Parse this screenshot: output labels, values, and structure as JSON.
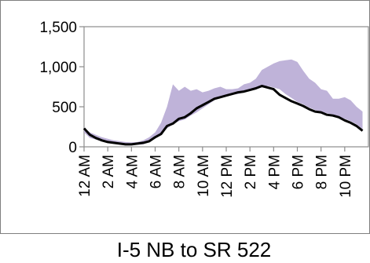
{
  "chart_data": {
    "type": "area",
    "title": "I-5 NB to SR 522",
    "xlabel": "",
    "ylabel": "",
    "ylim": [
      0,
      1500
    ],
    "y_ticks": [
      0,
      500,
      1000,
      1500
    ],
    "y_tick_labels": [
      "0",
      "500",
      "1,000",
      "1,500"
    ],
    "x_tick_labels": [
      "12 AM",
      "2 AM",
      "4 AM",
      "6 AM",
      "8 AM",
      "10 AM",
      "12 PM",
      "2 PM",
      "4 PM",
      "6 PM",
      "8 PM",
      "10 PM"
    ],
    "grid": false,
    "legend": "none",
    "x_hours": [
      0,
      0.5,
      1,
      1.5,
      2,
      2.5,
      3,
      3.5,
      4,
      4.5,
      5,
      5.5,
      6,
      6.5,
      7,
      7.5,
      8,
      8.5,
      9,
      9.5,
      10,
      10.5,
      11,
      11.5,
      12,
      12.5,
      13,
      13.5,
      14,
      14.5,
      15,
      15.5,
      16,
      16.5,
      17,
      17.5,
      18,
      18.5,
      19,
      19.5,
      20,
      20.5,
      21,
      21.5,
      22,
      22.5,
      23,
      23.5
    ],
    "series": [
      {
        "kind": "band",
        "color": "#bfb3d9",
        "lower": [
          180,
          110,
          90,
          70,
          50,
          40,
          30,
          25,
          20,
          25,
          30,
          60,
          100,
          160,
          230,
          280,
          320,
          340,
          390,
          430,
          480,
          530,
          580,
          610,
          640,
          650,
          660,
          680,
          700,
          720,
          740,
          760,
          740,
          720,
          660,
          610,
          560,
          530,
          490,
          460,
          440,
          420,
          400,
          370,
          350,
          320,
          280,
          220
        ],
        "upper": [
          240,
          180,
          150,
          120,
          100,
          80,
          70,
          60,
          55,
          60,
          80,
          120,
          180,
          300,
          500,
          780,
          700,
          750,
          700,
          720,
          680,
          700,
          730,
          750,
          720,
          720,
          730,
          780,
          800,
          850,
          960,
          1000,
          1040,
          1070,
          1080,
          1090,
          1060,
          950,
          850,
          800,
          720,
          700,
          600,
          600,
          620,
          580,
          500,
          440
        ]
      },
      {
        "kind": "line",
        "color": "#000000",
        "values": [
          230,
          150,
          110,
          80,
          60,
          50,
          40,
          30,
          30,
          40,
          50,
          70,
          120,
          160,
          260,
          290,
          350,
          370,
          420,
          480,
          520,
          560,
          600,
          620,
          640,
          660,
          680,
          690,
          710,
          730,
          760,
          740,
          720,
          650,
          610,
          570,
          540,
          510,
          470,
          440,
          430,
          400,
          390,
          370,
          330,
          300,
          260,
          200
        ]
      }
    ]
  }
}
